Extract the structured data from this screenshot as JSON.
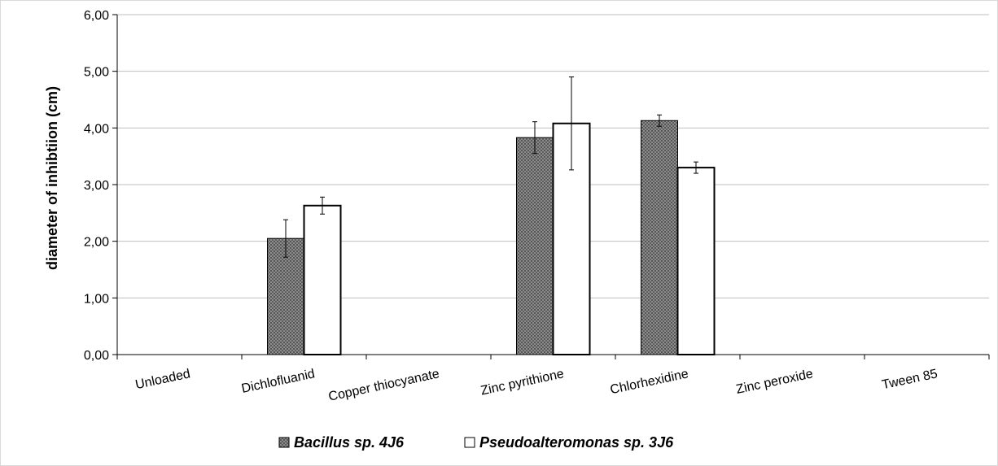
{
  "chart_data": {
    "type": "bar",
    "title": "",
    "xlabel": "",
    "ylabel": "diameter of inhibtiion (cm)",
    "ylim": [
      0,
      6
    ],
    "yticks": [
      "0,00",
      "1,00",
      "2,00",
      "3,00",
      "4,00",
      "5,00",
      "6,00"
    ],
    "grid": true,
    "legend_position": "bottom",
    "categories": [
      "Unloaded",
      "Dichlofluanid",
      "Copper thiocyanate",
      "Zinc pyrithione",
      "Chlorhexidine",
      "Zinc peroxide",
      "Tween 85"
    ],
    "series": [
      {
        "name": "Bacillus sp. 4J6",
        "pattern": "grey-crosshatch",
        "color": "#7a7a7a",
        "values": [
          0,
          2.05,
          0,
          3.83,
          4.13,
          0,
          0
        ],
        "errors": [
          0,
          0.33,
          0,
          0.28,
          0.1,
          0,
          0
        ]
      },
      {
        "name": "Pseudoalteromonas sp. 3J6",
        "pattern": "white",
        "color": "#ffffff",
        "values": [
          0,
          2.63,
          0,
          4.08,
          3.3,
          0,
          0
        ],
        "errors": [
          0,
          0.15,
          0,
          0.82,
          0.1,
          0,
          0
        ]
      }
    ]
  }
}
